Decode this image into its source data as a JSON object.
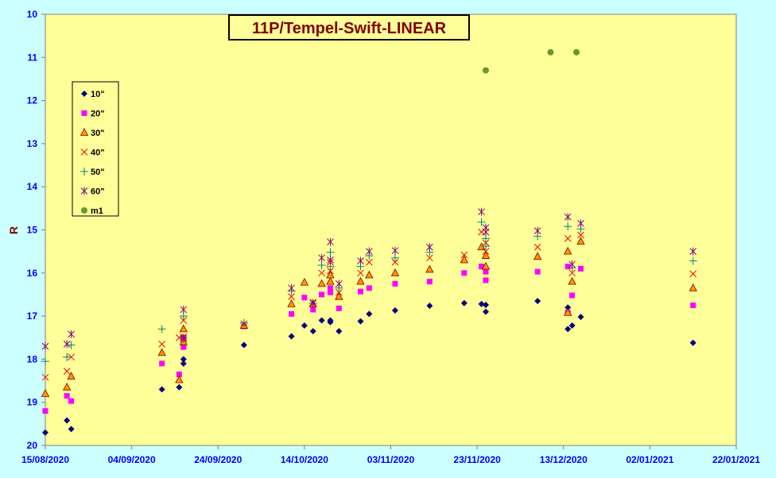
{
  "chart_data": {
    "type": "scatter",
    "title": "11P/Tempel-Swift-LINEAR",
    "xlabel": "",
    "ylabel": "R",
    "x_ticks": [
      "15/08/2020",
      "04/09/2020",
      "24/09/2020",
      "14/10/2020",
      "03/11/2020",
      "23/11/2020",
      "13/12/2020",
      "02/01/2021",
      "22/01/2021"
    ],
    "xlim": [
      "2020-08-15",
      "2021-01-22"
    ],
    "ylim": [
      10,
      20
    ],
    "y_reversed": true,
    "y_ticks": [
      10,
      11,
      12,
      13,
      14,
      15,
      16,
      17,
      18,
      19,
      20
    ],
    "grid": false,
    "legend_position": "left",
    "colors": {
      "background": "#ccffff",
      "plot_area": "#ffff99",
      "axis": "#808080",
      "tick_text": "#0000ff",
      "title_text": "#800000"
    },
    "series": [
      {
        "name": "10\"",
        "marker": "diamond",
        "color": "#000080",
        "points": [
          [
            "2020-08-15",
            19.7
          ],
          [
            "2020-08-20",
            19.42
          ],
          [
            "2020-08-21",
            19.62
          ],
          [
            "2020-09-11",
            18.7
          ],
          [
            "2020-09-15",
            18.65
          ],
          [
            "2020-09-16",
            18.0
          ],
          [
            "2020-09-16",
            18.1
          ],
          [
            "2020-09-30",
            17.67
          ],
          [
            "2020-10-11",
            17.47
          ],
          [
            "2020-10-14",
            17.22
          ],
          [
            "2020-10-16",
            17.35
          ],
          [
            "2020-10-18",
            17.1
          ],
          [
            "2020-10-20",
            17.1
          ],
          [
            "2020-10-20",
            17.14
          ],
          [
            "2020-10-22",
            17.35
          ],
          [
            "2020-10-27",
            17.12
          ],
          [
            "2020-10-29",
            16.95
          ],
          [
            "2020-11-04",
            16.87
          ],
          [
            "2020-11-12",
            16.76
          ],
          [
            "2020-11-20",
            16.7
          ],
          [
            "2020-11-24",
            16.72
          ],
          [
            "2020-11-25",
            16.74
          ],
          [
            "2020-11-25",
            16.9
          ],
          [
            "2020-12-07",
            16.65
          ],
          [
            "2020-12-14",
            16.8
          ],
          [
            "2020-12-14",
            17.3
          ],
          [
            "2020-12-15",
            17.22
          ],
          [
            "2020-12-17",
            17.02
          ],
          [
            "2021-01-12",
            17.62
          ]
        ]
      },
      {
        "name": "20\"",
        "marker": "square",
        "color": "#ff00ff",
        "points": [
          [
            "2020-08-15",
            19.2
          ],
          [
            "2020-08-20",
            18.85
          ],
          [
            "2020-08-21",
            18.97
          ],
          [
            "2020-09-11",
            18.1
          ],
          [
            "2020-09-15",
            18.35
          ],
          [
            "2020-09-16",
            17.72
          ],
          [
            "2020-09-16",
            17.5
          ],
          [
            "2020-09-30",
            17.24
          ],
          [
            "2020-10-11",
            16.95
          ],
          [
            "2020-10-14",
            16.57
          ],
          [
            "2020-10-16",
            16.85
          ],
          [
            "2020-10-18",
            16.5
          ],
          [
            "2020-10-20",
            16.45
          ],
          [
            "2020-10-20",
            16.35
          ],
          [
            "2020-10-22",
            16.82
          ],
          [
            "2020-10-27",
            16.43
          ],
          [
            "2020-10-29",
            16.35
          ],
          [
            "2020-11-04",
            16.25
          ],
          [
            "2020-11-12",
            16.2
          ],
          [
            "2020-11-20",
            16.0
          ],
          [
            "2020-11-24",
            15.85
          ],
          [
            "2020-11-25",
            15.97
          ],
          [
            "2020-11-25",
            16.17
          ],
          [
            "2020-12-07",
            15.97
          ],
          [
            "2020-12-14",
            15.85
          ],
          [
            "2020-12-14",
            16.92
          ],
          [
            "2020-12-15",
            16.52
          ],
          [
            "2020-12-17",
            15.9
          ],
          [
            "2021-01-12",
            16.75
          ]
        ]
      },
      {
        "name": "30\"",
        "marker": "triangle",
        "color": "#ff9900",
        "points": [
          [
            "2020-08-15",
            18.8
          ],
          [
            "2020-08-20",
            18.65
          ],
          [
            "2020-08-21",
            18.4
          ],
          [
            "2020-09-11",
            17.85
          ],
          [
            "2020-09-15",
            18.48
          ],
          [
            "2020-09-16",
            17.3
          ],
          [
            "2020-09-16",
            17.6
          ],
          [
            "2020-09-30",
            17.22
          ],
          [
            "2020-10-11",
            16.72
          ],
          [
            "2020-10-14",
            16.22
          ],
          [
            "2020-10-16",
            16.72
          ],
          [
            "2020-10-18",
            16.25
          ],
          [
            "2020-10-20",
            16.2
          ],
          [
            "2020-10-20",
            16.05
          ],
          [
            "2020-10-22",
            16.55
          ],
          [
            "2020-10-27",
            16.2
          ],
          [
            "2020-10-29",
            16.05
          ],
          [
            "2020-11-04",
            16.0
          ],
          [
            "2020-11-12",
            15.92
          ],
          [
            "2020-11-20",
            15.7
          ],
          [
            "2020-11-24",
            15.4
          ],
          [
            "2020-11-25",
            15.6
          ],
          [
            "2020-11-25",
            15.85
          ],
          [
            "2020-12-07",
            15.62
          ],
          [
            "2020-12-14",
            15.5
          ],
          [
            "2020-12-14",
            16.92
          ],
          [
            "2020-12-15",
            16.2
          ],
          [
            "2020-12-17",
            15.27
          ],
          [
            "2021-01-12",
            16.35
          ]
        ]
      },
      {
        "name": "40\"",
        "marker": "x",
        "color": "#ff0000",
        "points": [
          [
            "2020-08-15",
            18.42
          ],
          [
            "2020-08-20",
            18.28
          ],
          [
            "2020-08-21",
            17.95
          ],
          [
            "2020-09-11",
            17.65
          ],
          [
            "2020-09-15",
            17.5
          ],
          [
            "2020-09-16",
            17.1
          ],
          [
            "2020-09-16",
            17.48
          ],
          [
            "2020-09-30",
            17.18
          ],
          [
            "2020-10-11",
            16.55
          ],
          [
            "2020-10-16",
            16.68
          ],
          [
            "2020-10-18",
            16.0
          ],
          [
            "2020-10-20",
            15.95
          ],
          [
            "2020-10-20",
            15.75
          ],
          [
            "2020-10-22",
            16.45
          ],
          [
            "2020-10-27",
            16.0
          ],
          [
            "2020-10-29",
            15.75
          ],
          [
            "2020-11-04",
            15.75
          ],
          [
            "2020-11-12",
            15.65
          ],
          [
            "2020-11-20",
            15.58
          ],
          [
            "2020-11-24",
            15.05
          ],
          [
            "2020-11-25",
            15.3
          ],
          [
            "2020-11-25",
            15.5
          ],
          [
            "2020-12-07",
            15.4
          ],
          [
            "2020-12-14",
            15.2
          ],
          [
            "2020-12-15",
            16.0
          ],
          [
            "2020-12-17",
            15.12
          ],
          [
            "2021-01-12",
            16.02
          ]
        ]
      },
      {
        "name": "50\"",
        "marker": "plus",
        "color": "#008080",
        "points": [
          [
            "2020-08-15",
            18.05
          ],
          [
            "2020-08-20",
            17.95
          ],
          [
            "2020-08-21",
            17.67
          ],
          [
            "2020-09-11",
            17.3
          ],
          [
            "2020-09-16",
            17.0
          ],
          [
            "2020-09-16",
            17.5
          ],
          [
            "2020-09-30",
            17.16
          ],
          [
            "2020-10-11",
            16.42
          ],
          [
            "2020-10-16",
            16.7
          ],
          [
            "2020-10-18",
            15.82
          ],
          [
            "2020-10-20",
            15.52
          ],
          [
            "2020-10-20",
            15.85
          ],
          [
            "2020-10-22",
            16.35
          ],
          [
            "2020-10-27",
            15.85
          ],
          [
            "2020-10-29",
            15.6
          ],
          [
            "2020-11-04",
            15.65
          ],
          [
            "2020-11-12",
            15.52
          ],
          [
            "2020-11-24",
            14.82
          ],
          [
            "2020-11-25",
            15.2
          ],
          [
            "2020-11-25",
            15.38
          ],
          [
            "2020-12-07",
            15.15
          ],
          [
            "2020-12-14",
            14.92
          ],
          [
            "2020-12-15",
            15.88
          ],
          [
            "2020-12-17",
            14.98
          ],
          [
            "2021-01-12",
            15.72
          ]
        ]
      },
      {
        "name": "60\"",
        "marker": "asterisk",
        "color": "#800080",
        "points": [
          [
            "2020-08-15",
            17.7
          ],
          [
            "2020-08-20",
            17.65
          ],
          [
            "2020-08-21",
            17.42
          ],
          [
            "2020-09-16",
            16.85
          ],
          [
            "2020-09-16",
            17.52
          ],
          [
            "2020-10-11",
            16.35
          ],
          [
            "2020-10-16",
            16.7
          ],
          [
            "2020-10-18",
            15.65
          ],
          [
            "2020-10-20",
            15.28
          ],
          [
            "2020-10-20",
            15.7
          ],
          [
            "2020-10-22",
            16.25
          ],
          [
            "2020-10-27",
            15.72
          ],
          [
            "2020-10-29",
            15.5
          ],
          [
            "2020-11-04",
            15.48
          ],
          [
            "2020-11-12",
            15.4
          ],
          [
            "2020-11-24",
            14.58
          ],
          [
            "2020-11-25",
            15.05
          ],
          [
            "2020-11-25",
            14.95
          ],
          [
            "2020-12-07",
            15.02
          ],
          [
            "2020-12-14",
            14.7
          ],
          [
            "2020-12-15",
            15.8
          ],
          [
            "2020-12-17",
            14.85
          ],
          [
            "2021-01-12",
            15.5
          ]
        ]
      },
      {
        "name": "m1",
        "marker": "circle",
        "color": "#669933",
        "points": [
          [
            "2020-11-25",
            11.3
          ],
          [
            "2020-12-10",
            10.88
          ],
          [
            "2020-12-16",
            10.88
          ]
        ]
      }
    ]
  }
}
